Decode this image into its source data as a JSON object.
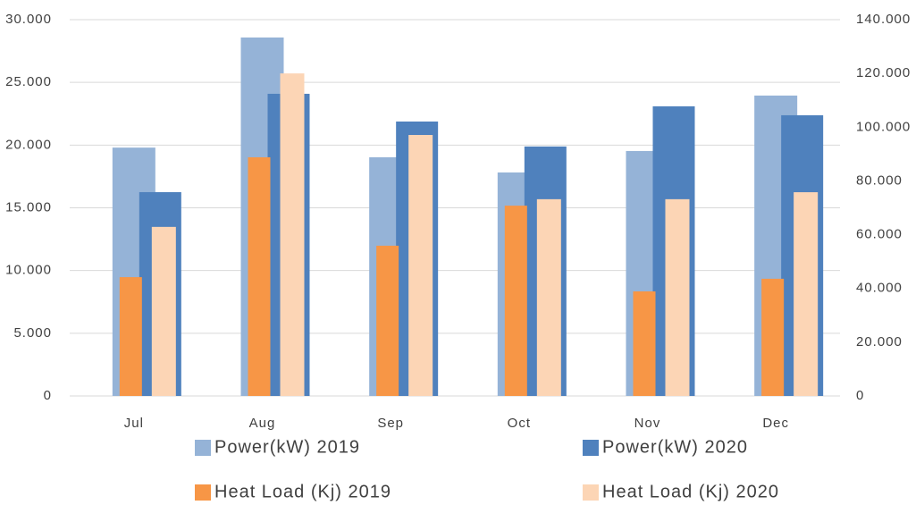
{
  "chart_data": {
    "type": "bar",
    "categories": [
      "Jul",
      "Aug",
      "Sep",
      "Oct",
      "Nov",
      "Dec"
    ],
    "series": [
      {
        "name": "Power(kW) 2019",
        "color": "#95b3d7",
        "values": [
          19800,
          28580,
          19030,
          17820,
          19530,
          23950
        ]
      },
      {
        "name": "Power(kW) 2020",
        "color": "#4f81bd",
        "values": [
          16250,
          24090,
          21880,
          19890,
          23090,
          22380
        ]
      },
      {
        "name": "Heat Load (Kj) 2019",
        "color": "#f79646",
        "axis": "y2",
        "values": [
          44200,
          88800,
          55900,
          70800,
          38900,
          43600
        ]
      },
      {
        "name": "Heat Load (Kj) 2020",
        "color": "#fcd5b5",
        "axis": "y2",
        "values": [
          62900,
          120000,
          97100,
          73200,
          73200,
          75800
        ]
      }
    ],
    "ylim": [
      0,
      30000
    ],
    "yticks": [
      0,
      {
        "value": 5000,
        "label": "5.000"
      },
      {
        "value": 10000,
        "label": "10.000"
      },
      {
        "value": 15000,
        "label": "15.000"
      },
      {
        "value": 20000,
        "label": "20.000"
      },
      {
        "value": 25000,
        "label": "25.000"
      },
      {
        "value": 30000,
        "label": "30.000"
      }
    ],
    "y2lim": [
      0,
      140000
    ],
    "y2ticks": [
      0,
      {
        "value": 20000,
        "label": "20.000"
      },
      {
        "value": 40000,
        "label": "40.000"
      },
      {
        "value": 60000,
        "label": "60.000"
      },
      {
        "value": 80000,
        "label": "80.000"
      },
      {
        "value": 100000,
        "label": "100.000"
      },
      {
        "value": 120000,
        "label": "120.000"
      },
      {
        "value": 140000,
        "label": "140.000"
      }
    ],
    "grid": true,
    "legend": "bottom"
  }
}
